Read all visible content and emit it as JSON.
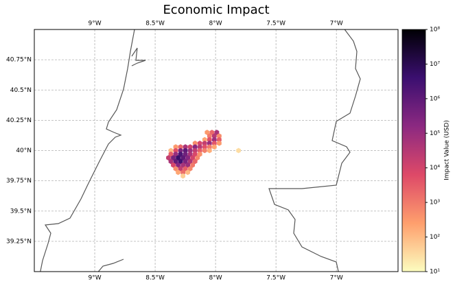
{
  "chart_data": {
    "type": "hexbin",
    "title": "Economic Impact",
    "colorbar_label": "Impact Value (USD)",
    "xlim": [
      -9.5,
      -6.49
    ],
    "ylim": [
      39.0,
      41.0
    ],
    "xticks": [
      {
        "value": -9,
        "label": "9°W"
      },
      {
        "value": -8.5,
        "label": "8.5°W"
      },
      {
        "value": -8,
        "label": "8°W"
      },
      {
        "value": -7.5,
        "label": "7.5°W"
      },
      {
        "value": -7,
        "label": "7°W"
      }
    ],
    "yticks": [
      {
        "value": 39.25,
        "label": "39.25°N"
      },
      {
        "value": 39.5,
        "label": "39.5°N"
      },
      {
        "value": 39.75,
        "label": "39.75°N"
      },
      {
        "value": 40,
        "label": "40°N"
      },
      {
        "value": 40.25,
        "label": "40.25°N"
      },
      {
        "value": 40.5,
        "label": "40.5°N"
      },
      {
        "value": 40.75,
        "label": "40.75°N"
      }
    ],
    "grid": true,
    "color_scale": "log",
    "clim": [
      10,
      100000000
    ],
    "cticks": [
      {
        "value": 10,
        "label": "10¹"
      },
      {
        "value": 100,
        "label": "10²"
      },
      {
        "value": 1000,
        "label": "10³"
      },
      {
        "value": 10000,
        "label": "10⁴"
      },
      {
        "value": 100000,
        "label": "10⁵"
      },
      {
        "value": 1000000,
        "label": "10⁶"
      },
      {
        "value": 10000000,
        "label": "10⁷"
      },
      {
        "value": 100000000,
        "label": "10⁸"
      }
    ],
    "colormap": [
      "#fcfdbf",
      "#fe9f6d",
      "#de4968",
      "#8c2981",
      "#3b0f70",
      "#000004"
    ],
    "x": [
      -8.07,
      -8.03,
      -7.99,
      -8.05,
      -8.01,
      -7.97,
      -8.09,
      -8.05,
      -8.01,
      -7.97,
      -8.17,
      -8.13,
      -8.09,
      -8.05,
      -8.01,
      -7.97,
      -8.33,
      -8.29,
      -8.25,
      -8.21,
      -8.17,
      -8.13,
      -8.09,
      -8.05,
      -8.01,
      -8.37,
      -8.33,
      -8.29,
      -8.25,
      -8.21,
      -8.17,
      -8.13,
      -8.09,
      -8.05,
      -8.37,
      -8.33,
      -8.29,
      -8.25,
      -8.21,
      -8.17,
      -8.13,
      -8.39,
      -8.35,
      -8.31,
      -8.27,
      -8.23,
      -8.19,
      -8.15,
      -8.37,
      -8.33,
      -8.29,
      -8.25,
      -8.21,
      -8.17,
      -8.35,
      -8.31,
      -8.27,
      -8.23,
      -8.19,
      -8.33,
      -8.29,
      -8.25,
      -8.21,
      -8.31,
      -8.27,
      -8.23,
      -8.27,
      -7.81
    ],
    "y": [
      40.15,
      40.15,
      40.15,
      40.12,
      40.12,
      40.12,
      40.09,
      40.09,
      40.09,
      40.09,
      40.06,
      40.06,
      40.06,
      40.06,
      40.06,
      40.06,
      40.03,
      40.03,
      40.03,
      40.03,
      40.03,
      40.03,
      40.03,
      40.03,
      40.03,
      40.0,
      40.0,
      40.0,
      40.0,
      40.0,
      40.0,
      40.0,
      40.0,
      40.0,
      39.97,
      39.97,
      39.97,
      39.97,
      39.97,
      39.97,
      39.97,
      39.94,
      39.94,
      39.94,
      39.94,
      39.94,
      39.94,
      39.94,
      39.91,
      39.91,
      39.91,
      39.91,
      39.91,
      39.91,
      39.88,
      39.88,
      39.88,
      39.88,
      39.88,
      39.85,
      39.85,
      39.85,
      39.85,
      39.82,
      39.82,
      39.82,
      39.79,
      40.0
    ],
    "values": [
      300,
      2000,
      50000,
      1000,
      30000,
      500,
      200,
      5000,
      80000,
      3000,
      500,
      8000,
      20000,
      100000,
      4000,
      300,
      300,
      2000,
      50000,
      10000,
      200000,
      30000,
      5000,
      1000,
      200,
      100,
      5000,
      300000,
      1000000,
      80000,
      20000,
      3000,
      800,
      150,
      3000,
      100000,
      2000000,
      500000,
      50000,
      8000,
      400,
      20000,
      400000,
      5000000,
      1000000,
      200000,
      10000,
      600,
      50000,
      800000,
      3000000,
      300000,
      40000,
      2000,
      8000,
      200000,
      60000,
      100000,
      1000,
      500,
      20000,
      3000,
      600,
      200,
      1500,
      100,
      50,
      30
    ]
  }
}
